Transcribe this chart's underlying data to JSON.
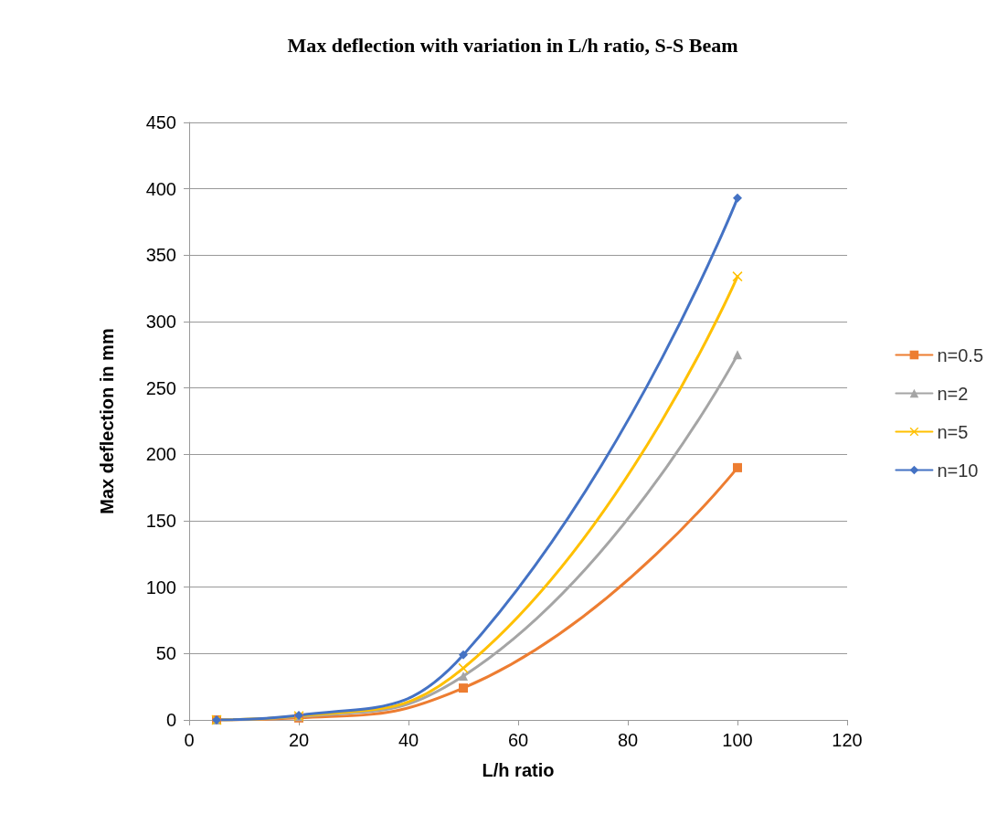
{
  "chart_data": {
    "type": "line",
    "title": "Max deflection with variation in L/h ratio, S-S Beam",
    "xlabel": "L/h ratio",
    "ylabel": "Max deflection in mm",
    "x": [
      5,
      20,
      50,
      100
    ],
    "series": [
      {
        "name": "n=0.5",
        "color": "#ed7d31",
        "marker": "square",
        "values": [
          0,
          1.5,
          24,
          190
        ]
      },
      {
        "name": "n=2",
        "color": "#a5a5a5",
        "marker": "triangle",
        "values": [
          0,
          2.5,
          33,
          275
        ]
      },
      {
        "name": "n=5",
        "color": "#ffc000",
        "marker": "cross",
        "values": [
          0,
          3,
          39,
          334
        ]
      },
      {
        "name": "n=10",
        "color": "#4472c4",
        "marker": "diamond",
        "values": [
          0,
          3.5,
          49,
          393
        ]
      }
    ],
    "xlim": [
      0,
      120
    ],
    "xticks": [
      0,
      20,
      40,
      60,
      80,
      100,
      120
    ],
    "ylim": [
      0,
      450
    ],
    "yticks": [
      0,
      50,
      100,
      150,
      200,
      250,
      300,
      350,
      400,
      450
    ],
    "grid": "y",
    "legend": "right",
    "line_style": "solid"
  }
}
